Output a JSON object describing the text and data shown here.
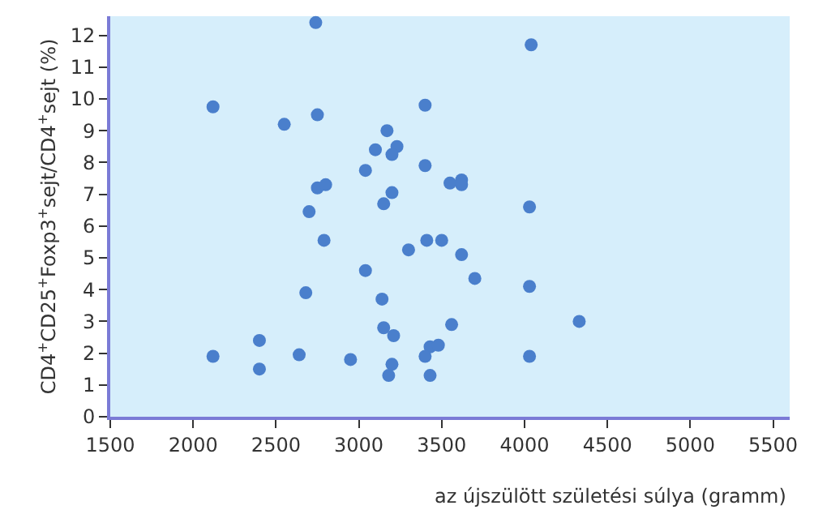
{
  "chart_data": {
    "type": "scatter",
    "xlabel": "az újszülött születési súlya (gramm)",
    "ylabel": "CD4$^{+}$CD25$^{+}$Foxp3$^{+}$sejt/CD4$^{+}$sejt (%)",
    "xlim": [
      1500,
      5600
    ],
    "xticks": [
      1500,
      2000,
      2500,
      3000,
      3500,
      4000,
      4500,
      5000,
      5500
    ],
    "ylim": [
      0,
      12.6
    ],
    "yticks": [
      0,
      1,
      2,
      3,
      4,
      5,
      6,
      7,
      8,
      9,
      10,
      11,
      12
    ],
    "grid": false,
    "marker": "circle",
    "series": [
      {
        "color": "#4a7fcc",
        "x": [
          2740,
          2120,
          2550,
          2750,
          3170,
          3100,
          3230,
          3200,
          3040,
          3400,
          3400,
          2750,
          2800,
          3200,
          3150,
          2700,
          4040,
          3550,
          3620,
          3620,
          4030,
          2790,
          3410,
          3300,
          3040,
          2680,
          3140,
          3150,
          3210,
          2120,
          2400,
          2400,
          2640,
          2950,
          3200,
          3180,
          3500,
          3620,
          3700,
          4030,
          4330,
          3560,
          3430,
          3480,
          3400,
          4030,
          3430
        ],
        "values": [
          12.4,
          9.75,
          9.2,
          9.5,
          9.0,
          8.4,
          8.5,
          8.25,
          7.75,
          9.8,
          7.9,
          7.2,
          7.3,
          7.05,
          6.7,
          6.45,
          11.7,
          7.35,
          7.45,
          7.3,
          6.6,
          5.55,
          5.55,
          5.25,
          4.6,
          3.9,
          3.7,
          2.8,
          2.55,
          1.9,
          2.4,
          1.5,
          1.95,
          1.8,
          1.65,
          1.3,
          5.55,
          5.1,
          4.35,
          4.1,
          3.0,
          2.9,
          2.2,
          2.25,
          1.9,
          1.9,
          1.3
        ]
      }
    ]
  }
}
